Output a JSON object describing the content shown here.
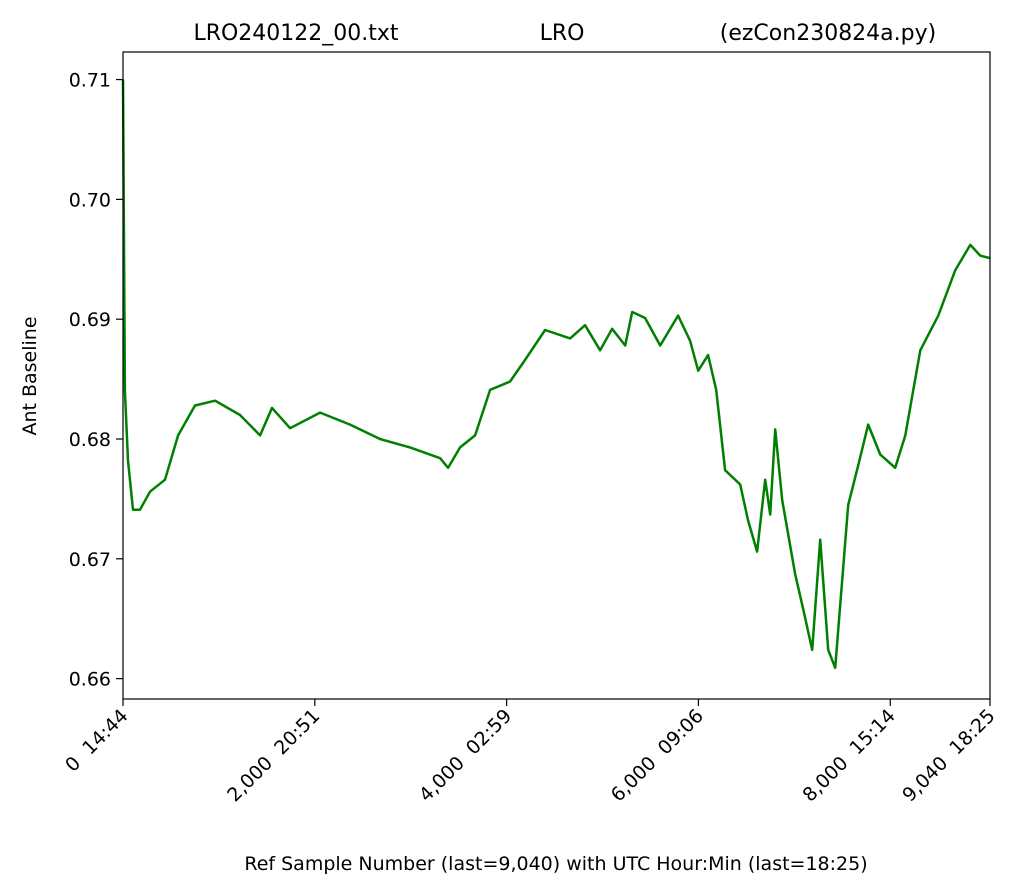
{
  "chart_data": {
    "type": "line",
    "title": [
      "LRO240122_00.txt",
      "LRO",
      "(ezCon230824a.py)"
    ],
    "x_label": "Ref Sample Number (last=9,040) with UTC Hour:Min (last=18:25)",
    "y_label": "Ant Baseline",
    "color": "#008000",
    "xlim": [
      0,
      9040
    ],
    "ylim": [
      0.6583,
      0.7123
    ],
    "xticks": [
      {
        "value": 0,
        "label": "0  14:44"
      },
      {
        "value": 2000,
        "label": "2,000  20:51"
      },
      {
        "value": 4000,
        "label": "4,000  02:59"
      },
      {
        "value": 6000,
        "label": "6,000  09:06"
      },
      {
        "value": 8000,
        "label": "8,000  15:14"
      },
      {
        "value": 9040,
        "label": "9,040  18:25"
      }
    ],
    "yticks": [
      0.66,
      0.67,
      0.68,
      0.69,
      {
        "value": 0.7,
        "label": "0.70"
      },
      0.71
    ],
    "x": [
      0,
      20,
      52,
      104,
      177,
      282,
      438,
      574,
      751,
      960,
      1220,
      1429,
      1554,
      1742,
      2055,
      2368,
      2680,
      2993,
      3306,
      3390,
      3515,
      3671,
      3828,
      4036,
      4193,
      4401,
      4662,
      4818,
      4975,
      5100,
      5236,
      5309,
      5444,
      5601,
      5788,
      5913,
      5997,
      6101,
      6185,
      6278,
      6435,
      6518,
      6612,
      6696,
      6748,
      6800,
      6873,
      7009,
      7092,
      7186,
      7270,
      7353,
      7426,
      7562,
      7666,
      7770,
      7896,
      8052,
      8157,
      8313,
      8501,
      8678,
      8835,
      8939,
      9040
    ],
    "values": [
      0.71,
      0.684,
      0.6782,
      0.6741,
      0.6741,
      0.6756,
      0.6766,
      0.6803,
      0.6828,
      0.6832,
      0.682,
      0.6803,
      0.6826,
      0.6809,
      0.6822,
      0.6812,
      0.68,
      0.6793,
      0.6784,
      0.6776,
      0.6793,
      0.6803,
      0.6841,
      0.6848,
      0.6866,
      0.6891,
      0.6884,
      0.6895,
      0.6874,
      0.6892,
      0.6878,
      0.6906,
      0.6901,
      0.6878,
      0.6903,
      0.6882,
      0.6857,
      0.687,
      0.6841,
      0.6774,
      0.6762,
      0.6732,
      0.6706,
      0.6766,
      0.6737,
      0.6808,
      0.6749,
      0.6687,
      0.6658,
      0.6624,
      0.6716,
      0.6624,
      0.6609,
      0.6745,
      0.6778,
      0.6812,
      0.6787,
      0.6776,
      0.6803,
      0.6874,
      0.6903,
      0.6941,
      0.6962,
      0.6953,
      0.6951
    ]
  }
}
